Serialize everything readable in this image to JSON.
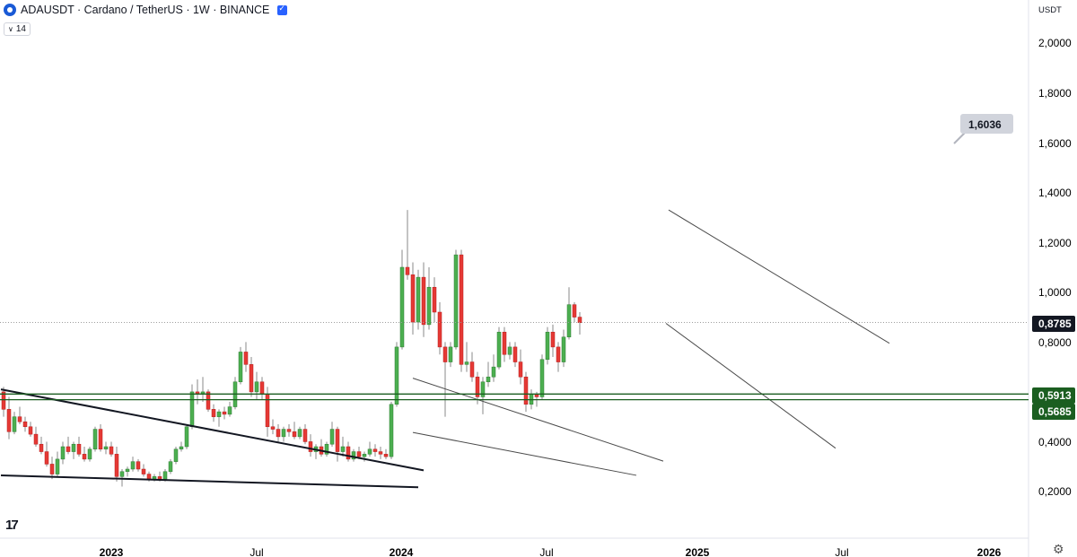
{
  "header": {
    "title": "ADAUSDT · Cardano / TetherUS · 1W · BINANCE",
    "indicator_badge": "14",
    "unit_label": "USDT"
  },
  "colors": {
    "up": "#4caf50",
    "down": "#e53935",
    "support": "#1b5e20",
    "price_line": "#9e9e9e",
    "label_bg": "#131722",
    "support_label_bg": "#1b5e20",
    "callout_bg": "#d1d4dc"
  },
  "chart_data": {
    "type": "candlestick",
    "symbol": "ADAUSDT",
    "timeframe": "1W",
    "y_ticks": [
      "2,0000",
      "1,8000",
      "1,6000",
      "1,4000",
      "1,2000",
      "1,0000",
      "0,8000",
      "0,4000",
      "0,2000"
    ],
    "x_ticks": [
      "2023",
      "Jul",
      "2024",
      "Jul",
      "2025",
      "Jul",
      "2026"
    ],
    "last_price": "0,8785",
    "support_levels": [
      "0,5913",
      "0,5685"
    ],
    "target_callout": "1,6036",
    "candles": [
      [
        0.6,
        0.62,
        0.5,
        0.53
      ],
      [
        0.53,
        0.58,
        0.41,
        0.44
      ],
      [
        0.44,
        0.52,
        0.43,
        0.5
      ],
      [
        0.5,
        0.54,
        0.47,
        0.48
      ],
      [
        0.48,
        0.5,
        0.44,
        0.46
      ],
      [
        0.46,
        0.48,
        0.42,
        0.43
      ],
      [
        0.43,
        0.46,
        0.38,
        0.39
      ],
      [
        0.39,
        0.42,
        0.35,
        0.36
      ],
      [
        0.36,
        0.4,
        0.3,
        0.31
      ],
      [
        0.31,
        0.34,
        0.25,
        0.27
      ],
      [
        0.27,
        0.36,
        0.26,
        0.33
      ],
      [
        0.33,
        0.4,
        0.31,
        0.38
      ],
      [
        0.38,
        0.42,
        0.35,
        0.36
      ],
      [
        0.36,
        0.4,
        0.33,
        0.39
      ],
      [
        0.39,
        0.42,
        0.34,
        0.35
      ],
      [
        0.35,
        0.38,
        0.32,
        0.33
      ],
      [
        0.33,
        0.38,
        0.32,
        0.37
      ],
      [
        0.37,
        0.46,
        0.36,
        0.45
      ],
      [
        0.45,
        0.47,
        0.36,
        0.37
      ],
      [
        0.37,
        0.4,
        0.35,
        0.38
      ],
      [
        0.38,
        0.4,
        0.34,
        0.35
      ],
      [
        0.35,
        0.38,
        0.24,
        0.26
      ],
      [
        0.26,
        0.29,
        0.22,
        0.28
      ],
      [
        0.28,
        0.3,
        0.26,
        0.29
      ],
      [
        0.29,
        0.34,
        0.28,
        0.32
      ],
      [
        0.32,
        0.33,
        0.28,
        0.29
      ],
      [
        0.29,
        0.31,
        0.26,
        0.27
      ],
      [
        0.27,
        0.28,
        0.24,
        0.25
      ],
      [
        0.25,
        0.27,
        0.24,
        0.26
      ],
      [
        0.26,
        0.28,
        0.24,
        0.25
      ],
      [
        0.25,
        0.29,
        0.24,
        0.28
      ],
      [
        0.28,
        0.33,
        0.27,
        0.32
      ],
      [
        0.32,
        0.38,
        0.31,
        0.37
      ],
      [
        0.37,
        0.4,
        0.36,
        0.38
      ],
      [
        0.38,
        0.47,
        0.37,
        0.46
      ],
      [
        0.46,
        0.63,
        0.45,
        0.6
      ],
      [
        0.6,
        0.65,
        0.55,
        0.59
      ],
      [
        0.59,
        0.66,
        0.56,
        0.6
      ],
      [
        0.6,
        0.61,
        0.52,
        0.53
      ],
      [
        0.53,
        0.55,
        0.48,
        0.5
      ],
      [
        0.5,
        0.53,
        0.46,
        0.52
      ],
      [
        0.52,
        0.54,
        0.49,
        0.51
      ],
      [
        0.51,
        0.56,
        0.5,
        0.54
      ],
      [
        0.54,
        0.66,
        0.53,
        0.64
      ],
      [
        0.64,
        0.78,
        0.63,
        0.76
      ],
      [
        0.76,
        0.8,
        0.68,
        0.71
      ],
      [
        0.71,
        0.74,
        0.58,
        0.6
      ],
      [
        0.6,
        0.68,
        0.57,
        0.64
      ],
      [
        0.64,
        0.66,
        0.57,
        0.59
      ],
      [
        0.59,
        0.62,
        0.42,
        0.46
      ],
      [
        0.46,
        0.49,
        0.43,
        0.45
      ],
      [
        0.45,
        0.47,
        0.4,
        0.42
      ],
      [
        0.42,
        0.46,
        0.4,
        0.45
      ],
      [
        0.45,
        0.47,
        0.42,
        0.44
      ],
      [
        0.44,
        0.48,
        0.41,
        0.42
      ],
      [
        0.42,
        0.46,
        0.41,
        0.45
      ],
      [
        0.45,
        0.47,
        0.39,
        0.4
      ],
      [
        0.4,
        0.43,
        0.34,
        0.36
      ],
      [
        0.36,
        0.39,
        0.33,
        0.38
      ],
      [
        0.38,
        0.41,
        0.34,
        0.35
      ],
      [
        0.35,
        0.4,
        0.34,
        0.39
      ],
      [
        0.39,
        0.48,
        0.38,
        0.45
      ],
      [
        0.45,
        0.46,
        0.32,
        0.36
      ],
      [
        0.36,
        0.42,
        0.34,
        0.38
      ],
      [
        0.38,
        0.4,
        0.32,
        0.33
      ],
      [
        0.33,
        0.37,
        0.32,
        0.36
      ],
      [
        0.36,
        0.38,
        0.33,
        0.34
      ],
      [
        0.34,
        0.36,
        0.32,
        0.35
      ],
      [
        0.35,
        0.4,
        0.34,
        0.37
      ],
      [
        0.37,
        0.39,
        0.34,
        0.36
      ],
      [
        0.36,
        0.38,
        0.33,
        0.35
      ],
      [
        0.35,
        0.37,
        0.33,
        0.34
      ],
      [
        0.34,
        0.56,
        0.33,
        0.55
      ],
      [
        0.55,
        0.8,
        0.54,
        0.78
      ],
      [
        0.78,
        1.17,
        0.77,
        1.1
      ],
      [
        1.1,
        1.33,
        1.05,
        1.07
      ],
      [
        1.07,
        1.12,
        0.83,
        0.88
      ],
      [
        0.88,
        1.09,
        0.85,
        1.06
      ],
      [
        1.06,
        1.12,
        0.82,
        0.87
      ],
      [
        0.87,
        1.1,
        0.85,
        1.02
      ],
      [
        1.02,
        1.06,
        0.88,
        0.92
      ],
      [
        0.92,
        0.96,
        0.75,
        0.78
      ],
      [
        0.78,
        0.8,
        0.5,
        0.72
      ],
      [
        0.72,
        0.8,
        0.7,
        0.78
      ],
      [
        0.78,
        1.17,
        0.77,
        1.15
      ],
      [
        1.15,
        1.17,
        0.68,
        0.71
      ],
      [
        0.71,
        0.8,
        0.68,
        0.72
      ],
      [
        0.72,
        0.76,
        0.64,
        0.66
      ],
      [
        0.66,
        0.68,
        0.55,
        0.58
      ],
      [
        0.58,
        0.66,
        0.51,
        0.64
      ],
      [
        0.64,
        0.72,
        0.62,
        0.66
      ],
      [
        0.66,
        0.75,
        0.64,
        0.7
      ],
      [
        0.7,
        0.86,
        0.69,
        0.84
      ],
      [
        0.84,
        0.86,
        0.72,
        0.75
      ],
      [
        0.75,
        0.8,
        0.73,
        0.78
      ],
      [
        0.78,
        0.8,
        0.7,
        0.72
      ],
      [
        0.72,
        0.77,
        0.63,
        0.66
      ],
      [
        0.66,
        0.68,
        0.52,
        0.55
      ],
      [
        0.55,
        0.61,
        0.53,
        0.59
      ],
      [
        0.59,
        0.6,
        0.54,
        0.58
      ],
      [
        0.58,
        0.75,
        0.57,
        0.73
      ],
      [
        0.73,
        0.86,
        0.71,
        0.84
      ],
      [
        0.84,
        0.87,
        0.74,
        0.78
      ],
      [
        0.78,
        0.8,
        0.68,
        0.72
      ],
      [
        0.72,
        0.85,
        0.7,
        0.82
      ],
      [
        0.82,
        1.02,
        0.81,
        0.95
      ],
      [
        0.95,
        0.96,
        0.88,
        0.9
      ],
      [
        0.9,
        0.92,
        0.83,
        0.878
      ]
    ],
    "trendlines": [
      {
        "from": [
          -0.5,
          0.61
        ],
        "to": [
          78,
          0.285
        ],
        "stroke": 2
      },
      {
        "from": [
          -0.5,
          0.265
        ],
        "to": [
          77,
          0.217
        ],
        "stroke": 2
      },
      {
        "from": [
          76,
          0.655
        ],
        "to": [
          122.5,
          0.322
        ],
        "stroke": 1
      },
      {
        "from": [
          76,
          0.437
        ],
        "to": [
          117.5,
          0.265
        ],
        "stroke": 1
      },
      {
        "from": [
          123.5,
          1.33
        ],
        "to": [
          164.5,
          0.795
        ],
        "stroke": 1
      },
      {
        "from": [
          123,
          0.875
        ],
        "to": [
          154.5,
          0.374
        ],
        "stroke": 1
      }
    ]
  }
}
